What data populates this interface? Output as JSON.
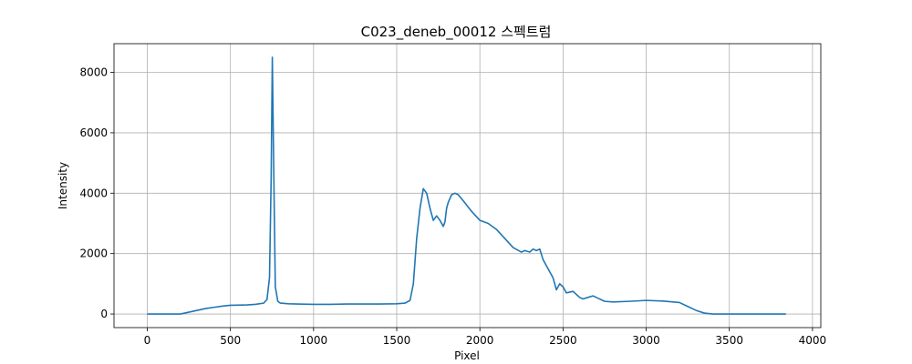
{
  "chart_data": {
    "type": "line",
    "title": "C023_deneb_00012 스펙트럼",
    "xlabel": "Pixel",
    "ylabel": "Intensity",
    "xlim": [
      -200,
      4050
    ],
    "ylim": [
      -450,
      8950
    ],
    "x_ticks": [
      0,
      500,
      1000,
      1500,
      2000,
      2500,
      3000,
      3500,
      4000
    ],
    "x_tick_labels": [
      "0",
      "500",
      "1000",
      "1500",
      "2000",
      "2500",
      "3000",
      "3500",
      "4000"
    ],
    "y_ticks": [
      0,
      2000,
      4000,
      6000,
      8000
    ],
    "y_tick_labels": [
      "0",
      "2000",
      "4000",
      "6000",
      "8000"
    ],
    "grid": true,
    "series": [
      {
        "color": "#1f77b4",
        "x": [
          0,
          100,
          200,
          250,
          300,
          350,
          400,
          450,
          500,
          600,
          650,
          700,
          720,
          735,
          745,
          752,
          760,
          770,
          785,
          800,
          850,
          900,
          1000,
          1100,
          1200,
          1300,
          1400,
          1500,
          1550,
          1580,
          1600,
          1620,
          1640,
          1660,
          1680,
          1700,
          1720,
          1740,
          1760,
          1780,
          1790,
          1800,
          1810,
          1830,
          1850,
          1870,
          1900,
          1950,
          2000,
          2050,
          2100,
          2150,
          2200,
          2250,
          2270,
          2300,
          2320,
          2340,
          2360,
          2380,
          2400,
          2420,
          2440,
          2460,
          2480,
          2500,
          2520,
          2560,
          2600,
          2620,
          2650,
          2680,
          2700,
          2750,
          2800,
          2900,
          3000,
          3100,
          3200,
          3250,
          3300,
          3350,
          3400,
          3450,
          3500,
          3600,
          3700,
          3800,
          3840
        ],
        "y": [
          0,
          0,
          0,
          60,
          120,
          180,
          220,
          260,
          290,
          300,
          320,
          360,
          480,
          1200,
          4500,
          8500,
          5000,
          900,
          420,
          360,
          340,
          330,
          320,
          320,
          330,
          330,
          330,
          340,
          360,
          450,
          1000,
          2500,
          3500,
          4150,
          4000,
          3500,
          3100,
          3250,
          3100,
          2900,
          3050,
          3500,
          3700,
          3950,
          4000,
          3950,
          3750,
          3400,
          3100,
          3000,
          2800,
          2500,
          2200,
          2050,
          2100,
          2050,
          2150,
          2100,
          2150,
          1800,
          1600,
          1400,
          1200,
          800,
          1000,
          900,
          700,
          750,
          550,
          500,
          550,
          600,
          550,
          420,
          400,
          420,
          450,
          430,
          380,
          250,
          120,
          30,
          0,
          0,
          0,
          0,
          0,
          0,
          0
        ]
      }
    ]
  }
}
